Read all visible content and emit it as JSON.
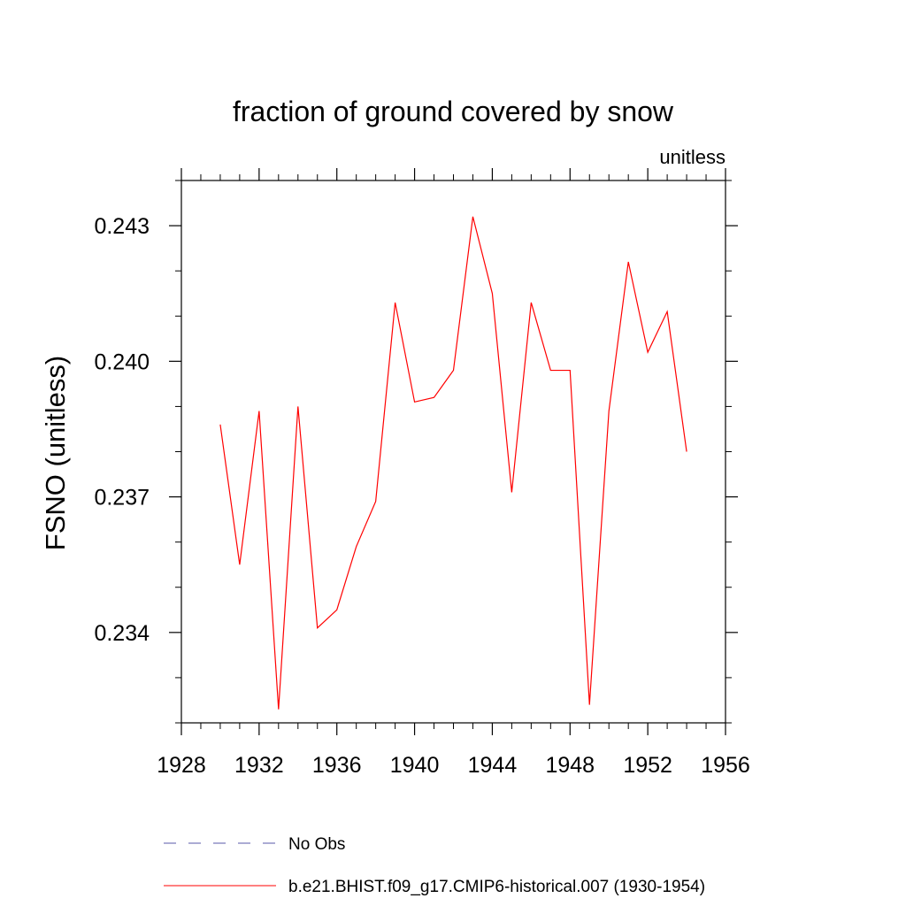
{
  "chart_data": {
    "type": "line",
    "title": "fraction of ground covered by snow",
    "units_label": "unitless",
    "xlabel": "",
    "ylabel": "FSNO  (unitless)",
    "xlim": [
      1928,
      1956
    ],
    "ylim": [
      0.232,
      0.244
    ],
    "x_ticks": [
      1928,
      1932,
      1936,
      1940,
      1944,
      1948,
      1952,
      1956
    ],
    "x_tick_labels": [
      "1928",
      "1932",
      "1936",
      "1940",
      "1944",
      "1948",
      "1952",
      "1956"
    ],
    "x_minor_step": 1,
    "y_ticks": [
      0.234,
      0.237,
      0.24,
      0.243
    ],
    "y_tick_labels": [
      "0.234",
      "0.237",
      "0.240",
      "0.243"
    ],
    "y_minor_step": 0.001,
    "grid": false,
    "legend_position": "bottom",
    "series": [
      {
        "name": "b.e21.BHIST.f09_g17.CMIP6-historical.007 (1930-1954)",
        "color": "#ff0000",
        "dash": "solid",
        "x": [
          1930,
          1931,
          1932,
          1933,
          1934,
          1935,
          1936,
          1937,
          1938,
          1939,
          1940,
          1941,
          1942,
          1943,
          1944,
          1945,
          1946,
          1947,
          1948,
          1949,
          1950,
          1951,
          1952,
          1953,
          1954
        ],
        "values": [
          0.2386,
          0.2355,
          0.2389,
          0.2323,
          0.239,
          0.2341,
          0.2345,
          0.2359,
          0.2369,
          0.2413,
          0.2391,
          0.2392,
          0.2398,
          0.2432,
          0.2415,
          0.2371,
          0.2413,
          0.2398,
          0.2398,
          0.2324,
          0.2389,
          0.2422,
          0.2402,
          0.2411,
          0.238
        ]
      }
    ],
    "legend": [
      {
        "label": "No Obs",
        "color": "#5a5aa8",
        "dash": "dashed"
      },
      {
        "label": "b.e21.BHIST.f09_g17.CMIP6-historical.007 (1930-1954)",
        "color": "#ff0000",
        "dash": "solid"
      }
    ]
  }
}
